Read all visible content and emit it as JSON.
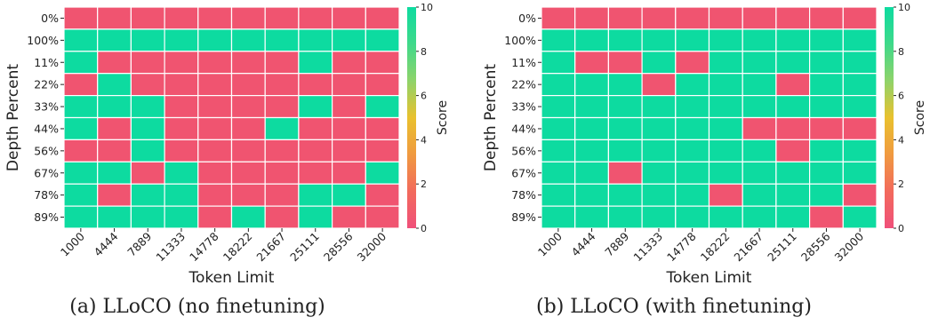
{
  "figure": {
    "colors": {
      "fail": "#f05470",
      "pass": "#0ddba0",
      "cell_border": "#ffffff"
    },
    "colorbar_stops": [
      "#f0507a",
      "#f26a5c",
      "#f09a40",
      "#e9c12e",
      "#8fd36a",
      "#3fd98a",
      "#0ddba0"
    ]
  },
  "chart_data": [
    {
      "type": "heatmap",
      "caption": "(a) LLoCO (no finetuning)",
      "xlabel": "Token Limit",
      "ylabel": "Depth Percent",
      "colorbar_label": "Score",
      "colorbar_range": [
        0,
        10
      ],
      "colorbar_ticks": [
        "0",
        "2",
        "4",
        "6",
        "8",
        "10"
      ],
      "x": [
        "1000",
        "4444",
        "7889",
        "11333",
        "14778",
        "18222",
        "21667",
        "25111",
        "28556",
        "32000"
      ],
      "y": [
        "0%",
        "100%",
        "11%",
        "22%",
        "33%",
        "44%",
        "56%",
        "67%",
        "78%",
        "89%"
      ],
      "values": [
        [
          0,
          0,
          0,
          0,
          0,
          0,
          0,
          0,
          0,
          0
        ],
        [
          10,
          10,
          10,
          10,
          10,
          10,
          10,
          10,
          10,
          10
        ],
        [
          10,
          0,
          0,
          0,
          0,
          0,
          0,
          10,
          0,
          0
        ],
        [
          0,
          10,
          0,
          0,
          0,
          0,
          0,
          0,
          0,
          0
        ],
        [
          10,
          10,
          10,
          0,
          0,
          0,
          0,
          10,
          0,
          10
        ],
        [
          10,
          0,
          10,
          0,
          0,
          0,
          10,
          0,
          0,
          0
        ],
        [
          0,
          0,
          10,
          0,
          0,
          0,
          0,
          0,
          0,
          0
        ],
        [
          10,
          10,
          0,
          10,
          0,
          0,
          0,
          0,
          0,
          10
        ],
        [
          10,
          0,
          10,
          10,
          0,
          0,
          0,
          10,
          10,
          0
        ],
        [
          10,
          10,
          10,
          10,
          0,
          10,
          0,
          10,
          0,
          0
        ]
      ]
    },
    {
      "type": "heatmap",
      "caption": "(b) LLoCO (with finetuning)",
      "xlabel": "Token Limit",
      "ylabel": "Depth Percent",
      "colorbar_label": "Score",
      "colorbar_range": [
        0,
        10
      ],
      "colorbar_ticks": [
        "0",
        "2",
        "4",
        "6",
        "8",
        "10"
      ],
      "x": [
        "1000",
        "4444",
        "7889",
        "11333",
        "14778",
        "18222",
        "21667",
        "25111",
        "28556",
        "32000"
      ],
      "y": [
        "0%",
        "100%",
        "11%",
        "22%",
        "33%",
        "44%",
        "56%",
        "67%",
        "78%",
        "89%"
      ],
      "values": [
        [
          0,
          0,
          0,
          0,
          0,
          0,
          0,
          0,
          0,
          0
        ],
        [
          10,
          10,
          10,
          10,
          10,
          10,
          10,
          10,
          10,
          10
        ],
        [
          10,
          0,
          0,
          10,
          0,
          10,
          10,
          10,
          10,
          10
        ],
        [
          10,
          10,
          10,
          0,
          10,
          10,
          10,
          0,
          10,
          10
        ],
        [
          10,
          10,
          10,
          10,
          10,
          10,
          10,
          10,
          10,
          10
        ],
        [
          10,
          10,
          10,
          10,
          10,
          10,
          0,
          0,
          0,
          0
        ],
        [
          10,
          10,
          10,
          10,
          10,
          10,
          10,
          0,
          10,
          10
        ],
        [
          10,
          10,
          0,
          10,
          10,
          10,
          10,
          10,
          10,
          10
        ],
        [
          10,
          10,
          10,
          10,
          10,
          0,
          10,
          10,
          10,
          0
        ],
        [
          10,
          10,
          10,
          10,
          10,
          10,
          10,
          10,
          0,
          10
        ]
      ]
    }
  ]
}
